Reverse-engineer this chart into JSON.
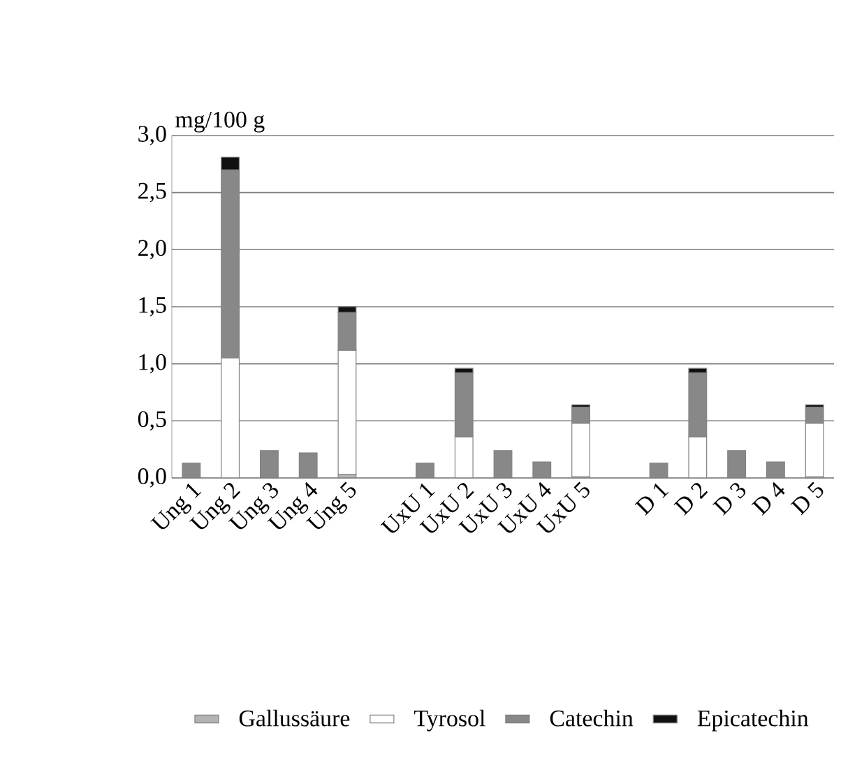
{
  "chart_data": {
    "type": "bar",
    "stacked": true,
    "ylabel": "mg/100 g",
    "categories": [
      "Ung 1",
      "Ung 2",
      "Ung 3",
      "Ung 4",
      "Ung 5",
      null,
      "UxU 1",
      "UxU 2",
      "UxU 3",
      "UxU 4",
      "UxU 5",
      null,
      "D 1",
      "D 2",
      "D 3",
      "D 4",
      "D 5"
    ],
    "series": [
      {
        "name": "Gallussäure",
        "color": "#b4b4b4",
        "values": [
          null,
          null,
          null,
          null,
          0.03,
          null,
          null,
          null,
          null,
          null,
          0.01,
          null,
          null,
          null,
          null,
          null,
          0.01
        ]
      },
      {
        "name": "Tyrosol",
        "color": "#ffffff",
        "values": [
          null,
          1.05,
          null,
          null,
          1.09,
          null,
          null,
          0.36,
          null,
          null,
          0.47,
          null,
          null,
          0.36,
          null,
          null,
          0.47
        ]
      },
      {
        "name": "Catechin",
        "color": "#888888",
        "values": [
          0.13,
          1.65,
          0.24,
          0.22,
          0.33,
          null,
          0.13,
          0.56,
          0.24,
          0.14,
          0.14,
          null,
          0.13,
          0.56,
          0.24,
          0.14,
          0.14
        ]
      },
      {
        "name": "Epicatechin",
        "color": "#111111",
        "values": [
          null,
          0.11,
          null,
          null,
          0.05,
          null,
          null,
          0.04,
          null,
          null,
          0.02,
          null,
          null,
          0.04,
          null,
          null,
          0.02
        ]
      }
    ],
    "ylim": [
      0,
      3
    ],
    "yticks": [
      {
        "value": 0,
        "label": "0,0"
      },
      {
        "value": 0.5,
        "label": "0,5"
      },
      {
        "value": 1,
        "label": "1,0"
      },
      {
        "value": 1.5,
        "label": "1,5"
      },
      {
        "value": 2,
        "label": "2,0"
      },
      {
        "value": 2.5,
        "label": "2,5"
      },
      {
        "value": 3,
        "label": "3,0"
      }
    ],
    "grid": "y",
    "legend": "bottom"
  }
}
